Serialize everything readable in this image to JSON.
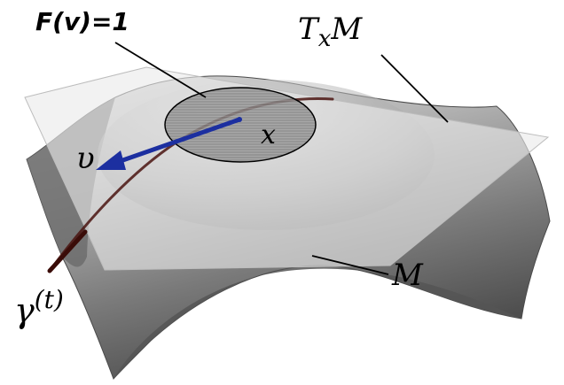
{
  "diagram": {
    "labels": {
      "norm_condition": "F(v)=1",
      "tangent_space_base": "T",
      "tangent_space_sub": "x",
      "tangent_space_tail": "M",
      "point": "x",
      "vector": "υ",
      "curve_name": "γ",
      "curve_arg": "(t)",
      "manifold": "M"
    },
    "colors": {
      "surface_dark": "#5f5f5f",
      "surface_light": "#c9c9c9",
      "tangent_plane": "#e6e6e6",
      "vector_arrow": "#1c2fa0",
      "curve": "#4a1410",
      "leader_line": "#000000"
    }
  }
}
